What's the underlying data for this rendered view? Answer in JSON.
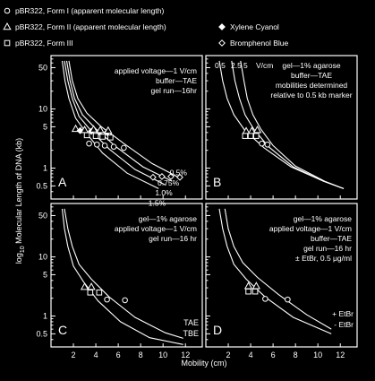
{
  "chart_data": {
    "type": "line",
    "xlabel": "Mobility (cm)",
    "ylabel_main": "log",
    "ylabel_sub": "10",
    "ylabel_rest": " Molecular Length of DNA (kb)",
    "x_ticks": [
      "2",
      "4",
      "6",
      "8",
      "10",
      "12"
    ],
    "y_ticks": [
      "50",
      "10",
      "5",
      "1",
      "0.5"
    ],
    "xlim": [
      0,
      13.5
    ],
    "ylim_log": [
      0.3,
      80
    ],
    "legend": [
      {
        "symbol": "circle",
        "label": "pBR322, Form I (apparent molecular length)"
      },
      {
        "symbol": "triangle",
        "label": "pBR322, Form II (apparent molecular length)"
      },
      {
        "symbol": "square",
        "label": "pBR322, Form III"
      },
      {
        "symbol": "diamond-filled",
        "label": "Xylene Cyanol"
      },
      {
        "symbol": "diamond-open",
        "label": "Bromphenol Blue"
      }
    ],
    "panels": [
      {
        "letter": "A",
        "notes": [
          "applied voltage—1 V/cm",
          "buffer—TAE",
          "gel run—16hr"
        ],
        "series": [
          {
            "name": "0.5%",
            "x": [
              1.6,
              1.9,
              2.4,
              3.2,
              4.5,
              6.5,
              9,
              11.5
            ],
            "y": [
              65,
              30,
              15,
              8.5,
              5,
              2.6,
              1.2,
              0.68
            ]
          },
          {
            "name": "0.75%",
            "x": [
              1.4,
              1.7,
              2.1,
              2.8,
              4,
              5.8,
              8.2,
              10.8
            ],
            "y": [
              65,
              30,
              15,
              8,
              4.6,
              2.3,
              1.05,
              0.6
            ]
          },
          {
            "name": "1.0%",
            "x": [
              1.2,
              1.5,
              1.9,
              2.5,
              3.6,
              5.2,
              7.5,
              10.2
            ],
            "y": [
              65,
              30,
              15,
              7.5,
              4.2,
              2.1,
              0.95,
              0.52
            ]
          },
          {
            "name": "1.5%",
            "x": [
              1,
              1.25,
              1.6,
              2.2,
              3.2,
              4.6,
              6.8,
              9.6
            ],
            "y": [
              65,
              30,
              15,
              7,
              3.8,
              1.8,
              0.82,
              0.45
            ]
          }
        ],
        "markers": [
          {
            "symbol": "triangle",
            "x": 2.2,
            "y": 4.6
          },
          {
            "symbol": "diamond-filled",
            "x": 2.6,
            "y": 4.3
          },
          {
            "symbol": "triangle",
            "x": 3,
            "y": 4.4
          },
          {
            "symbol": "square",
            "x": 3.2,
            "y": 3.6
          },
          {
            "symbol": "diamond-filled",
            "x": 3.6,
            "y": 4.2
          },
          {
            "symbol": "triangle",
            "x": 3.8,
            "y": 4.5
          },
          {
            "symbol": "square",
            "x": 4,
            "y": 3.5
          },
          {
            "symbol": "diamond-filled",
            "x": 4.3,
            "y": 4.1
          },
          {
            "symbol": "triangle",
            "x": 4.4,
            "y": 4.4
          },
          {
            "symbol": "square",
            "x": 4.6,
            "y": 3.4
          },
          {
            "symbol": "diamond-filled",
            "x": 5,
            "y": 4
          },
          {
            "symbol": "triangle",
            "x": 5.1,
            "y": 4.3
          },
          {
            "symbol": "square",
            "x": 5.3,
            "y": 3.3
          },
          {
            "symbol": "circle",
            "x": 3.4,
            "y": 2.6
          },
          {
            "symbol": "circle",
            "x": 4.1,
            "y": 2.5
          },
          {
            "symbol": "circle",
            "x": 4.8,
            "y": 2.4
          },
          {
            "symbol": "circle",
            "x": 5.6,
            "y": 2.3
          },
          {
            "symbol": "circle",
            "x": 6.5,
            "y": 2.2
          },
          {
            "symbol": "diamond-open",
            "x": 9.1,
            "y": 0.7
          },
          {
            "symbol": "diamond-open",
            "x": 9.9,
            "y": 0.72
          },
          {
            "symbol": "diamond-open",
            "x": 10.7,
            "y": 0.72
          },
          {
            "symbol": "diamond-open",
            "x": 11.5,
            "y": 0.7
          }
        ]
      },
      {
        "letter": "B",
        "notes": [
          "gel—1% agarose",
          "buffer—TAE",
          "mobilities determined",
          "relative to 0.5 kb marker"
        ],
        "voltage_labels": [
          "0.5",
          "2.5",
          "5",
          "V/cm"
        ],
        "series": [
          {
            "name": "0.5",
            "x": [
              1.2,
              1.5,
              1.9,
              2.5,
              3.5,
              5.2,
              7.6,
              10.5,
              12.3
            ],
            "y": [
              65,
              30,
              15,
              8,
              4.3,
              2.2,
              1.05,
              0.6,
              0.45
            ]
          },
          {
            "name": "2.5",
            "x": [
              2.3,
              2.6,
              3,
              3.5,
              4.3,
              5.6,
              7.8,
              10.5,
              12.3
            ],
            "y": [
              65,
              30,
              15,
              8,
              4.5,
              2.3,
              1.05,
              0.6,
              0.45
            ]
          },
          {
            "name": "5",
            "x": [
              3.1,
              3.4,
              3.7,
              4.2,
              4.9,
              6,
              8,
              10.6,
              12.3
            ],
            "y": [
              65,
              30,
              15,
              8,
              4.6,
              2.4,
              1.08,
              0.6,
              0.45
            ]
          }
        ],
        "markers": [
          {
            "symbol": "triangle",
            "x": 3.6,
            "y": 4.2
          },
          {
            "symbol": "triangle",
            "x": 4.1,
            "y": 4.2
          },
          {
            "symbol": "triangle",
            "x": 4.6,
            "y": 4.4
          },
          {
            "symbol": "square",
            "x": 3.5,
            "y": 3.5
          },
          {
            "symbol": "square",
            "x": 4,
            "y": 3.5
          },
          {
            "symbol": "square",
            "x": 4.5,
            "y": 3.5
          },
          {
            "symbol": "circle",
            "x": 5,
            "y": 2.6
          },
          {
            "symbol": "circle",
            "x": 5.5,
            "y": 2.5
          }
        ]
      },
      {
        "letter": "C",
        "notes": [
          "gel—1% agarose",
          "applied voltage—1 V/cm",
          "gel run—16 hr"
        ],
        "series": [
          {
            "name": "TAE",
            "x": [
              1.2,
              1.5,
              1.9,
              2.5,
              3.6,
              5.2,
              7.5,
              10.2,
              11.8
            ],
            "y": [
              65,
              30,
              15,
              7.5,
              4.2,
              2.1,
              0.95,
              0.52,
              0.42
            ]
          },
          {
            "name": "TBE",
            "x": [
              1,
              1.2,
              1.5,
              2,
              2.9,
              4.2,
              6.2,
              8.8,
              11.8
            ],
            "y": [
              65,
              30,
              15,
              7,
              3.8,
              1.8,
              0.8,
              0.43,
              0.33
            ]
          }
        ],
        "markers": [
          {
            "symbol": "triangle",
            "x": 3,
            "y": 3.1
          },
          {
            "symbol": "triangle",
            "x": 3.6,
            "y": 3.1
          },
          {
            "symbol": "square",
            "x": 3.5,
            "y": 2.5
          },
          {
            "symbol": "square",
            "x": 4.3,
            "y": 2.5
          },
          {
            "symbol": "circle",
            "x": 5,
            "y": 1.9
          },
          {
            "symbol": "circle",
            "x": 6.6,
            "y": 1.85
          }
        ]
      },
      {
        "letter": "D",
        "notes": [
          "gel—1% agarose",
          "applied voltage—1 V/cm",
          "buffer—TAE",
          "gel run—16 hr",
          "± EtBr, 0.5 μg/ml"
        ],
        "series": [
          {
            "name": "+ EtBr",
            "x": [
              1.7,
              2,
              2.5,
              3.3,
              4.6,
              6.5,
              9,
              11.2
            ],
            "y": [
              65,
              30,
              15,
              8,
              4.5,
              2.3,
              1.05,
              0.6
            ]
          },
          {
            "name": "- EtBr",
            "x": [
              1.2,
              1.5,
              1.9,
              2.5,
              3.6,
              5.3,
              7.8,
              11.2
            ],
            "y": [
              65,
              30,
              15,
              7.5,
              4.2,
              2.1,
              0.95,
              0.5
            ]
          }
        ],
        "markers": [
          {
            "symbol": "triangle",
            "x": 3.8,
            "y": 3.2
          },
          {
            "symbol": "triangle",
            "x": 4.5,
            "y": 3.2
          },
          {
            "symbol": "square",
            "x": 3.8,
            "y": 2.6
          },
          {
            "symbol": "square",
            "x": 4.4,
            "y": 2.6
          },
          {
            "symbol": "circle",
            "x": 5.3,
            "y": 1.95
          },
          {
            "symbol": "circle",
            "x": 7.3,
            "y": 1.9
          }
        ]
      }
    ]
  }
}
